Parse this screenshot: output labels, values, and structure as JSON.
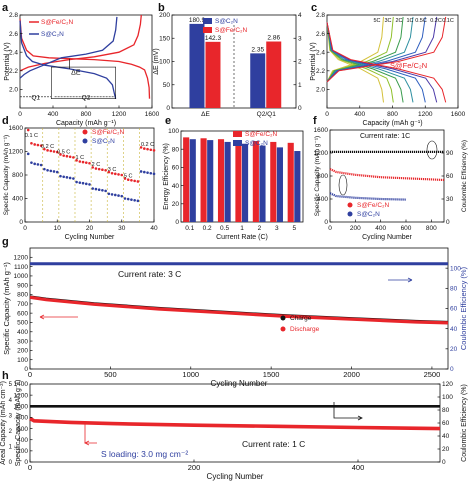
{
  "colors": {
    "red": "#e8262b",
    "blue": "#2f3f9f",
    "black": "#111111",
    "ann": "#333333"
  },
  "panels": [
    {
      "letter": "a"
    },
    {
      "letter": "b"
    },
    {
      "letter": "c"
    },
    {
      "letter": "d"
    },
    {
      "letter": "e"
    },
    {
      "letter": "f"
    },
    {
      "letter": "g"
    },
    {
      "letter": "h"
    }
  ],
  "chart_data": [
    {
      "panel": "a",
      "type": "line",
      "xlabel": "Capacity (mAh g⁻¹)",
      "ylabel": "Potential (V)",
      "xlim": [
        0,
        1600
      ],
      "ylim": [
        1.8,
        2.8
      ],
      "xticks": [
        0,
        400,
        800,
        1200,
        1600
      ],
      "yticks": [
        2.0,
        2.2,
        2.4,
        2.6,
        2.8
      ],
      "series": [
        {
          "name": "S@Fe/C₂N",
          "color": "red",
          "points": [
            [
              0,
              2.76
            ],
            [
              20,
              2.55
            ],
            [
              80,
              2.42
            ],
            [
              160,
              2.36
            ],
            [
              350,
              2.34
            ],
            [
              600,
              2.33
            ],
            [
              900,
              2.32
            ],
            [
              1200,
              2.3
            ],
            [
              1350,
              2.27
            ],
            [
              1450,
              2.24
            ],
            [
              1510,
              2.21
            ],
            [
              1545,
              2.12
            ],
            [
              1565,
              2.02
            ],
            [
              1570,
              1.9
            ]
          ]
        },
        {
          "name": "S@Fe/C₂N",
          "color": "red",
          "points": [
            [
              0,
              2.2
            ],
            [
              100,
              2.24
            ],
            [
              300,
              2.28
            ],
            [
              600,
              2.32
            ],
            [
              900,
              2.35
            ],
            [
              1200,
              2.4
            ],
            [
              1380,
              2.48
            ],
            [
              1430,
              2.58
            ],
            [
              1460,
              2.7
            ],
            [
              1470,
              2.8
            ]
          ]
        },
        {
          "name": "S@C₂N",
          "color": "blue",
          "points": [
            [
              0,
              2.74
            ],
            [
              20,
              2.5
            ],
            [
              80,
              2.36
            ],
            [
              150,
              2.3
            ],
            [
              300,
              2.26
            ],
            [
              600,
              2.22
            ],
            [
              900,
              2.17
            ],
            [
              1050,
              2.12
            ],
            [
              1120,
              2.05
            ],
            [
              1150,
              1.93
            ],
            [
              1160,
              1.9
            ]
          ]
        },
        {
          "name": "S@C₂N",
          "color": "blue",
          "points": [
            [
              0,
              2.12
            ],
            [
              50,
              2.16
            ],
            [
              120,
              2.2
            ],
            [
              500,
              2.34
            ],
            [
              800,
              2.38
            ],
            [
              1000,
              2.42
            ],
            [
              1130,
              2.52
            ],
            [
              1160,
              2.64
            ],
            [
              1175,
              2.78
            ]
          ]
        }
      ],
      "legend": [
        "S@Fe/C₂N",
        "S@C₂N"
      ],
      "annotations": [
        "ΔE",
        "Q1",
        "Q2"
      ]
    },
    {
      "panel": "b",
      "type": "bar",
      "ylabel_left": "ΔE (mV)",
      "ylim_left": [
        0,
        200
      ],
      "yticks_left": [
        0,
        50,
        100,
        150,
        200
      ],
      "ylim_right": [
        0,
        4
      ],
      "yticks_right": [
        0,
        1,
        2,
        3,
        4
      ],
      "categories": [
        "ΔE",
        "Q2/Q1"
      ],
      "series": [
        {
          "name": "S@C₂N",
          "color": "blue",
          "values": [
            180.9,
            2.35
          ]
        },
        {
          "name": "S@Fe/C₂N",
          "color": "red",
          "values": [
            142.3,
            2.86
          ]
        }
      ],
      "value_labels": [
        [
          "180.9",
          "142.3"
        ],
        [
          "2.35",
          "2.86"
        ]
      ],
      "legend": [
        "S@C₂N",
        "S@Fe/C₂N"
      ]
    },
    {
      "panel": "c",
      "type": "line",
      "xlabel": "Capacity (mAh g⁻¹)",
      "ylabel": "Potential (V)",
      "xlim": [
        0,
        1600
      ],
      "ylim": [
        1.8,
        2.8
      ],
      "xticks": [
        0,
        400,
        800,
        1200,
        1600
      ],
      "yticks": [
        2.0,
        2.2,
        2.4,
        2.6,
        2.8
      ],
      "rate_labels": [
        "5C",
        "3C",
        "2C",
        "1C",
        "0.5C",
        "0.2C",
        "0.1C"
      ],
      "rate_capacities": [
        690,
        810,
        930,
        1050,
        1200,
        1340,
        1450
      ],
      "rate_colors": [
        "#d4c13a",
        "#8fc02c",
        "#3a9c4e",
        "#2d8fa0",
        "#2f5fbf",
        "#4c3aa8",
        "#e8262b"
      ],
      "series_label": "S@Fe/C₂N"
    },
    {
      "panel": "d",
      "type": "scatter",
      "xlabel": "Cycling Number",
      "ylabel": "Specific Capacity (mAh g⁻¹)",
      "xlim": [
        0,
        40
      ],
      "ylim": [
        0,
        1600
      ],
      "xticks": [
        0,
        10,
        20,
        30,
        40
      ],
      "yticks": [
        0,
        400,
        800,
        1200,
        1600
      ],
      "rates": [
        "0.1 C",
        "0.2 C",
        "0.5 C",
        "1 C",
        "2 C",
        "3 C",
        "5 C",
        "0.2 C"
      ],
      "series": [
        {
          "name": "S@Fe/C₂N",
          "color": "red",
          "values": [
            1565,
            1340,
            1320,
            1310,
            1300,
            1240,
            1220,
            1210,
            1200,
            1190,
            1150,
            1130,
            1120,
            1110,
            1100,
            1050,
            1030,
            1020,
            1010,
            1000,
            930,
            910,
            900,
            890,
            880,
            850,
            830,
            820,
            810,
            800,
            740,
            720,
            710,
            700,
            690,
            1270,
            1250,
            1240,
            1230,
            1220
          ]
        },
        {
          "name": "S@C₂N",
          "color": "blue",
          "values": [
            1160,
            1010,
            990,
            980,
            970,
            900,
            880,
            870,
            860,
            850,
            780,
            770,
            760,
            750,
            740,
            680,
            670,
            660,
            650,
            640,
            570,
            560,
            550,
            540,
            530,
            480,
            470,
            460,
            450,
            440,
            400,
            390,
            380,
            370,
            360,
            860,
            850,
            840,
            830,
            820
          ]
        }
      ],
      "legend": [
        "S@Fe/C₂N",
        "S@C₂N"
      ]
    },
    {
      "panel": "e",
      "type": "bar",
      "xlabel": "Current Rate (C)",
      "ylabel": "Energy Efficiency (%)",
      "ylim": [
        0,
        100
      ],
      "yticks": [
        0,
        20,
        40,
        60,
        80,
        100
      ],
      "categories": [
        "0.1",
        "0.2",
        "0.5",
        "1",
        "2",
        "3",
        "5"
      ],
      "series": [
        {
          "name": "S@Fe/C₂N",
          "color": "red",
          "values": [
            93,
            92,
            91,
            90,
            89,
            88,
            87
          ]
        },
        {
          "name": "S@C₂N",
          "color": "blue",
          "values": [
            91,
            90,
            88,
            86,
            84,
            82,
            78
          ]
        }
      ],
      "legend": [
        "S@Fe/C₂N",
        "S@C₂N"
      ]
    },
    {
      "panel": "f",
      "type": "scatter",
      "xlabel": "Cycling Number",
      "ylabel": "Specific Capacity (mAh g⁻¹)",
      "ylabel_right": "Coulombic Efficiency (%)",
      "xlim": [
        0,
        900
      ],
      "ylim": [
        0,
        1600
      ],
      "ylim_right": [
        0,
        120
      ],
      "xticks": [
        0,
        200,
        400,
        600,
        800
      ],
      "yticks": [
        0,
        400,
        800,
        1200,
        1600
      ],
      "yticks_right": [
        0,
        30,
        60,
        90
      ],
      "note": "Current rate: 1C",
      "series": [
        {
          "name": "Coulombic Efficiency",
          "color": "black",
          "x": [
            0,
            900
          ],
          "y": [
            1220,
            1220
          ]
        },
        {
          "name": "S@Fe/C₂N",
          "color": "red",
          "x": [
            0,
            50,
            200,
            400,
            600,
            800,
            900
          ],
          "y": [
            920,
            870,
            820,
            780,
            760,
            740,
            730
          ]
        },
        {
          "name": "S@C₂N",
          "color": "blue",
          "x": [
            0,
            50,
            200,
            400,
            600
          ],
          "y": [
            500,
            450,
            420,
            400,
            390
          ]
        }
      ],
      "legend": [
        "S@Fe/C₂N",
        "S@C₂N"
      ]
    },
    {
      "panel": "g",
      "type": "scatter",
      "xlabel": "Cycling Number",
      "ylabel": "Specific Capacity (mAh g⁻¹)",
      "ylabel_right": "Coulombic Efficiency (%)",
      "xlim": [
        0,
        2600
      ],
      "ylim": [
        0,
        1300
      ],
      "ylim_right": [
        0,
        120
      ],
      "xticks": [
        0,
        500,
        1000,
        1500,
        2000,
        2500
      ],
      "yticks": [
        0,
        100,
        200,
        300,
        400,
        500,
        600,
        700,
        800,
        900,
        1000,
        1100,
        1200
      ],
      "yticks_right": [
        0,
        20,
        40,
        60,
        80,
        100
      ],
      "note": "Current rate: 3 C",
      "series": [
        {
          "name": "Coulombic Efficiency",
          "color": "blue",
          "x": [
            0,
            2600
          ],
          "y": [
            1130,
            1130
          ]
        },
        {
          "name": "Charge",
          "color": "black",
          "x": [
            0,
            100,
            400,
            800,
            1200,
            1600,
            2000,
            2400,
            2600
          ],
          "y": [
            775,
            750,
            700,
            650,
            610,
            570,
            540,
            510,
            500
          ]
        },
        {
          "name": "Discharge",
          "color": "red",
          "x": [
            0,
            100,
            400,
            800,
            1200,
            1600,
            2000,
            2400,
            2600
          ],
          "y": [
            770,
            745,
            695,
            645,
            605,
            565,
            535,
            505,
            495
          ]
        }
      ],
      "legend": [
        "Charge",
        "Discharge"
      ]
    },
    {
      "panel": "h",
      "type": "scatter",
      "xlabel": "Cycling Number",
      "ylabel": "Specific Capacity (mAh g⁻¹)",
      "ylabel2": "Areal Capacity (mAh cm⁻²)",
      "ylabel_right": "Coulombic Efficiency (%)",
      "xlim": [
        0,
        500
      ],
      "ylim": [
        0,
        1400
      ],
      "ylim_right": [
        0,
        120
      ],
      "xticks": [
        0,
        200,
        400
      ],
      "yticks": [
        0,
        200,
        400,
        600,
        800,
        1000,
        1200,
        1400
      ],
      "yticks_area": [
        0,
        1,
        2,
        3,
        4,
        5
      ],
      "yticks_right": [
        0,
        20,
        40,
        60,
        80,
        100,
        120
      ],
      "note": "Current rate: 1 C",
      "note2": "S loading: 3.0 mg cm⁻²",
      "series": [
        {
          "name": "Coulombic Efficiency",
          "color": "black",
          "x": [
            0,
            500
          ],
          "y": [
            1000,
            1000
          ]
        },
        {
          "name": "Capacity",
          "color": "red",
          "x": [
            0,
            5,
            50,
            100,
            200,
            300,
            400,
            500
          ],
          "y": [
            780,
            740,
            710,
            690,
            660,
            640,
            620,
            600
          ]
        }
      ]
    }
  ]
}
